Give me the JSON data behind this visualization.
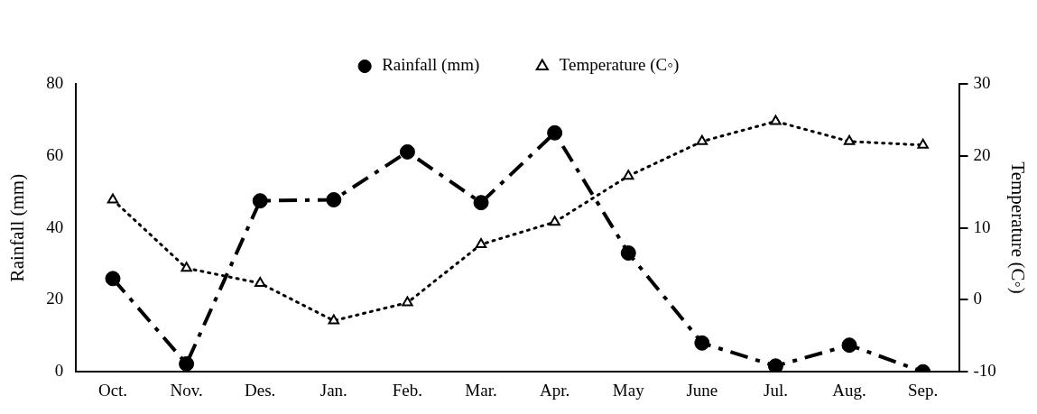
{
  "chart_data": {
    "type": "line",
    "categories": [
      "Oct.",
      "Nov.",
      "Des.",
      "Jan.",
      "Feb.",
      "Mar.",
      "Apr.",
      "May",
      "June",
      "Jul.",
      "Aug.",
      "Sep."
    ],
    "series": [
      {
        "name": "Rainfall (mm)",
        "color": "#000000",
        "marker": "circle",
        "line_style": "dashed",
        "values": [
          25.9,
          2.2,
          47.5,
          47.8,
          61.1,
          47.0,
          66.4,
          33.0,
          8.0,
          1.6,
          7.4,
          0
        ]
      },
      {
        "name": "Temperature (C◦)",
        "color": "#000000",
        "marker": "triangle",
        "line_style": "dotted",
        "axis": "y2",
        "values": [
          13.9,
          4.4,
          2.3,
          -2.9,
          -0.4,
          7.7,
          10.8,
          17.2,
          22.0,
          24.8,
          22.0,
          21.5
        ]
      }
    ],
    "ylabel": "Rainfall (mm)",
    "y2label": "Temperature (C◦)",
    "ylim": [
      0,
      80
    ],
    "yticks": [
      0,
      20,
      40,
      60,
      80
    ],
    "y2lim": [
      -10,
      30
    ],
    "y2ticks": [
      -10,
      0,
      10,
      20,
      30
    ],
    "grid": false,
    "legend": "top"
  }
}
